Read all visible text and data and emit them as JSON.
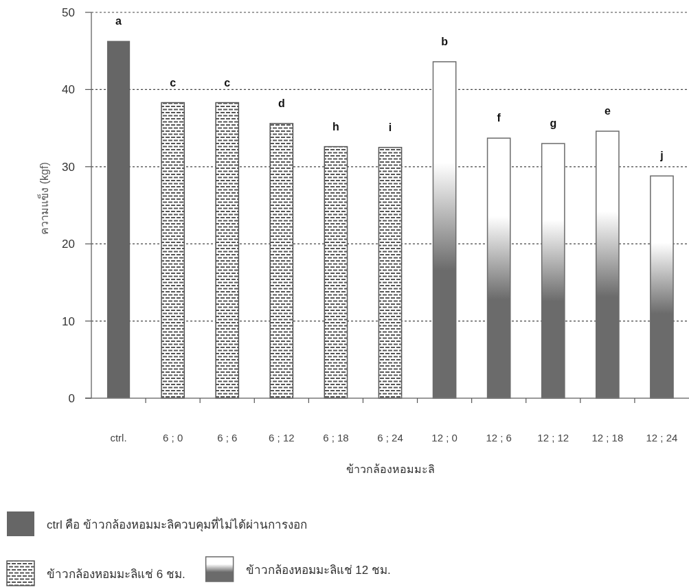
{
  "chart_data": {
    "type": "bar",
    "xlabel": "ข้าวกล้องหอมมะลิ",
    "ylabel": "ความแข็ง (kgf)",
    "categories": [
      "ctrl.",
      "6 ; 0",
      "6 ; 6",
      "6 ; 12",
      "6 ; 18",
      "6 ; 24",
      "12 ; 0",
      "12 ; 6",
      "12 ; 12",
      "12 ; 18",
      "12 ; 24"
    ],
    "stacked": true,
    "series": [
      {
        "name": "ctrl คือ ข้าวกล้องหอมมะลิควบคุมที่ไม่ได้ผ่านการงอก",
        "color": "#666666",
        "values": [
          46.3,
          null,
          null,
          null,
          null,
          null,
          null,
          null,
          null,
          null,
          null
        ]
      },
      {
        "name": "ข้าวกล้องหอมมะลิแช่ 6 ชม.",
        "color": "#555555",
        "values": [
          null,
          38.3,
          38.3,
          35.6,
          32.6,
          32.5,
          null,
          null,
          null,
          null,
          null
        ]
      },
      {
        "name": "ข้าวกล้องหอมมะลิแช่ 12 ชม.",
        "color": "#6b6b6b",
        "values": [
          null,
          null,
          null,
          null,
          null,
          null,
          43.6,
          33.7,
          33.0,
          34.6,
          28.8
        ]
      }
    ],
    "ylim": [
      0,
      50
    ],
    "yticks": [
      0,
      10,
      20,
      30,
      40,
      50
    ],
    "grid": "y",
    "legend": "bottom",
    "annotations": [
      {
        "text": "a",
        "x": "ctrl.",
        "y": 46.3
      },
      {
        "text": "c",
        "x": "6 ; 0",
        "y": 38.3
      },
      {
        "text": "c",
        "x": "6 ; 6",
        "y": 38.3
      },
      {
        "text": "d",
        "x": "6 ; 12",
        "y": 35.6
      },
      {
        "text": "h",
        "x": "6 ; 18",
        "y": 32.6
      },
      {
        "text": "i",
        "x": "6 ; 24",
        "y": 32.5
      },
      {
        "text": "b",
        "x": "12 ; 0",
        "y": 43.6
      },
      {
        "text": "f",
        "x": "12 ; 6",
        "y": 33.7
      },
      {
        "text": "g",
        "x": "12 ; 12",
        "y": 33.0
      },
      {
        "text": "e",
        "x": "12 ; 18",
        "y": 34.6
      },
      {
        "text": "j",
        "x": "12 ; 24",
        "y": 28.8
      }
    ]
  }
}
